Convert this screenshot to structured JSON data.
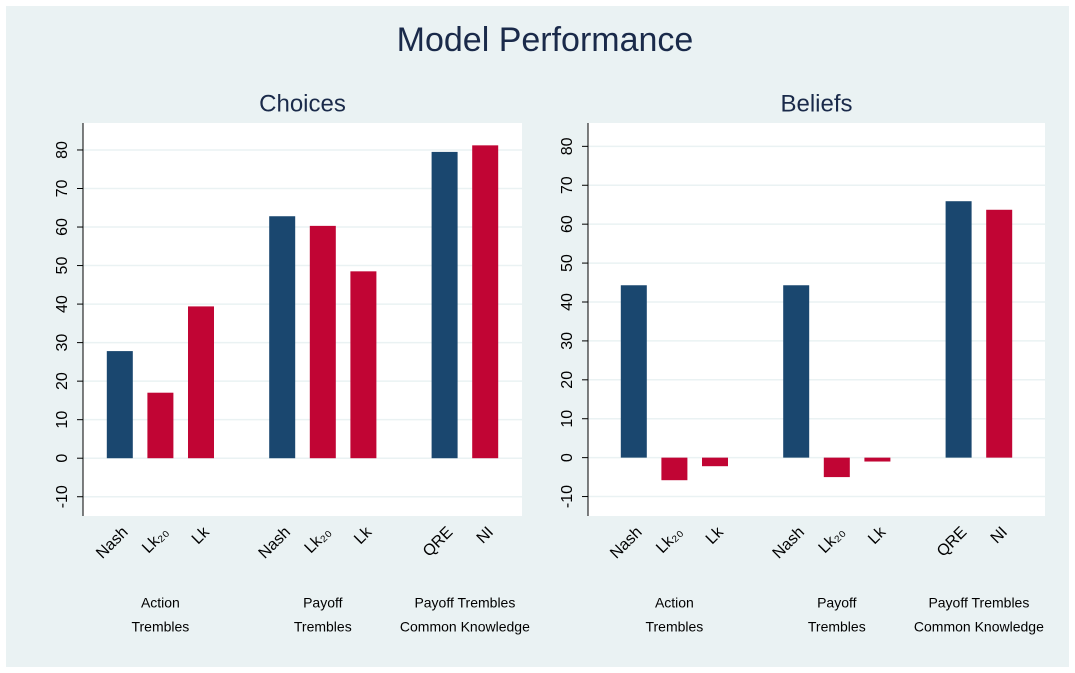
{
  "title": "Model Performance",
  "chart_data": [
    {
      "type": "bar",
      "title": "Choices",
      "ylim": [
        -15,
        87
      ],
      "yticks": [
        -10,
        0,
        10,
        20,
        30,
        40,
        50,
        60,
        70,
        80
      ],
      "grid": true,
      "groups": [
        {
          "label": [
            "Action",
            "Trembles"
          ],
          "categories": [
            "Nash",
            "Lk₂₀",
            "Lk"
          ],
          "values": [
            27.8,
            17,
            39.4
          ],
          "colors": [
            "#1a476f",
            "#c10534",
            "#c10534"
          ]
        },
        {
          "label": [
            "Payoff",
            "Trembles"
          ],
          "categories": [
            "Nash",
            "Lk₂₀",
            "Lk"
          ],
          "values": [
            62.8,
            60.3,
            48.5
          ],
          "colors": [
            "#1a476f",
            "#c10534",
            "#c10534"
          ]
        },
        {
          "label": [
            "Payoff Trembles",
            "Common Knowledge"
          ],
          "categories": [
            "QRE",
            "NI"
          ],
          "values": [
            79.5,
            81.2
          ],
          "colors": [
            "#1a476f",
            "#c10534"
          ]
        }
      ]
    },
    {
      "type": "bar",
      "title": "Beliefs",
      "ylim": [
        -15,
        86
      ],
      "yticks": [
        -10,
        0,
        10,
        20,
        30,
        40,
        50,
        60,
        70,
        80
      ],
      "grid": true,
      "groups": [
        {
          "label": [
            "Action",
            "Trembles"
          ],
          "categories": [
            "Nash",
            "Lk₂₀",
            "Lk"
          ],
          "values": [
            44.3,
            -5.8,
            -2.2
          ],
          "colors": [
            "#1a476f",
            "#c10534",
            "#c10534"
          ]
        },
        {
          "label": [
            "Payoff",
            "Trembles"
          ],
          "categories": [
            "Nash",
            "Lk₂₀",
            "Lk"
          ],
          "values": [
            44.3,
            -5,
            -1
          ],
          "colors": [
            "#1a476f",
            "#c10534",
            "#c10534"
          ]
        },
        {
          "label": [
            "Payoff Trembles",
            "Common Knowledge"
          ],
          "categories": [
            "QRE",
            "NI"
          ],
          "values": [
            65.9,
            63.7
          ],
          "colors": [
            "#1a476f",
            "#c10534"
          ]
        }
      ]
    }
  ]
}
